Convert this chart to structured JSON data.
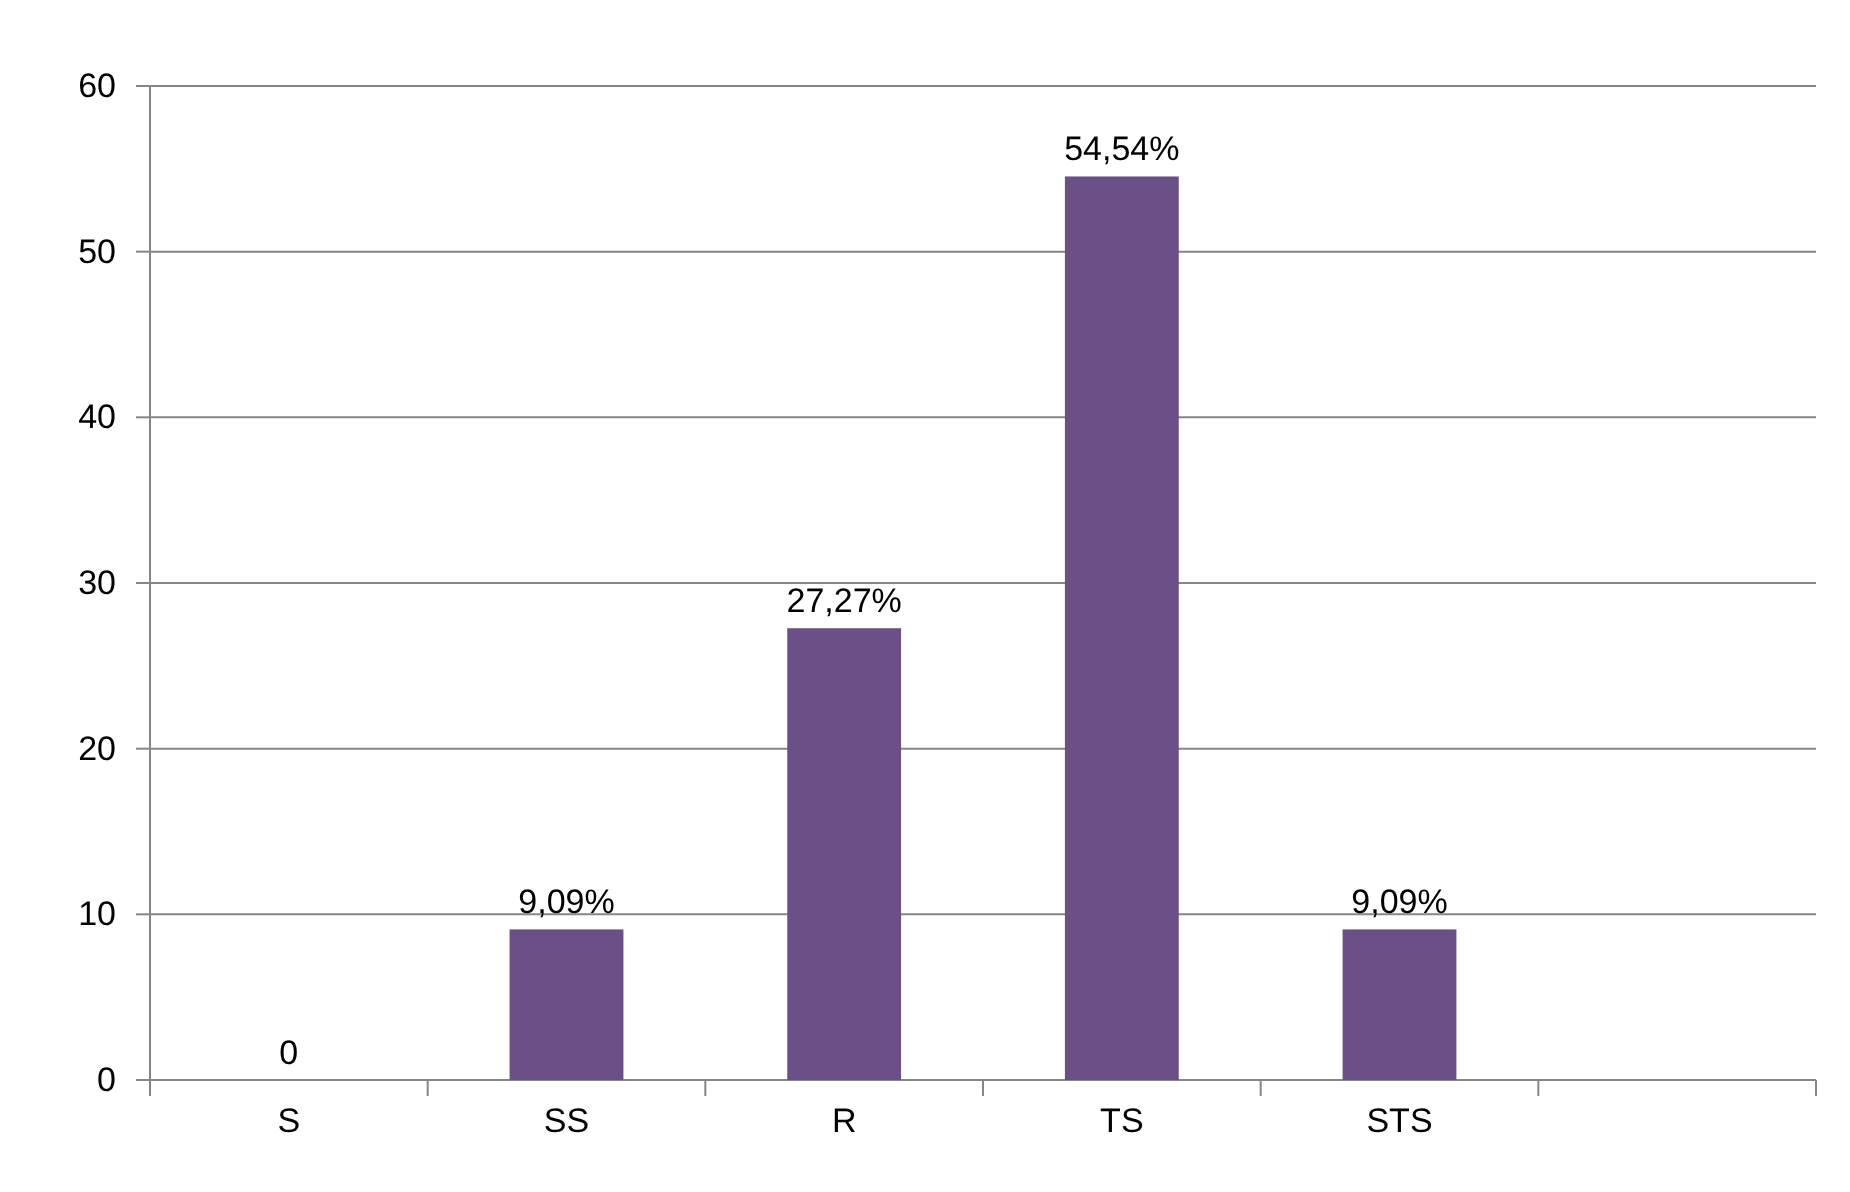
{
  "chart_data": {
    "type": "bar",
    "categories": [
      "S",
      "SS",
      "R",
      "TS",
      "STS",
      null
    ],
    "values": [
      0,
      9.09,
      27.27,
      54.54,
      9.09,
      null
    ],
    "value_labels": [
      "0",
      "9,09%",
      "27,27%",
      "54,54%",
      "9,09%",
      null
    ],
    "color": "#6a5087",
    "ylim": [
      0,
      60
    ],
    "yticks": [
      0,
      10,
      20,
      30,
      40,
      50,
      60
    ],
    "grid": "y"
  }
}
